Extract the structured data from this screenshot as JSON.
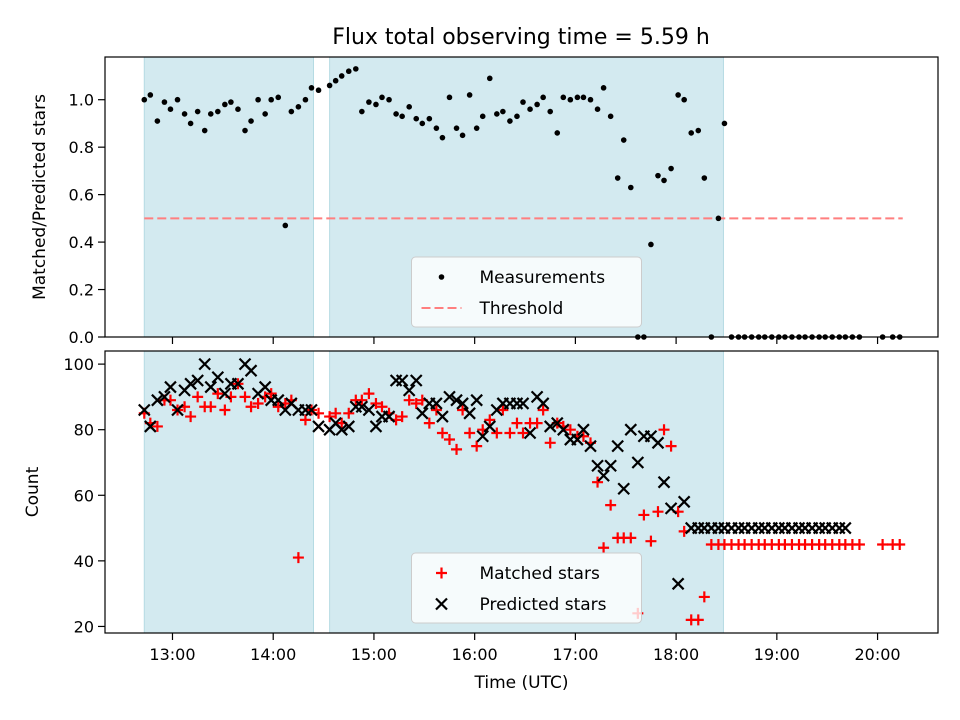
{
  "title": "Flux total observing time = 5.59 h",
  "colors": {
    "measurements": "#000000",
    "threshold": "#ff7f7f",
    "matched": "#ff0000",
    "predicted": "#000000",
    "shade": "#d3eaf0",
    "shade_edge": "#b5dbe3"
  },
  "chart_data": [
    {
      "type": "scatter",
      "ylabel": "Matched/Predicted stars",
      "xlabel": "",
      "x_unit": "hours UTC",
      "xlim": [
        12.33,
        20.6
      ],
      "ylim": [
        0,
        1.18
      ],
      "yticks": [
        0.0,
        0.2,
        0.4,
        0.6,
        0.8,
        1.0
      ],
      "ytick_labels": [
        "0.0",
        "0.2",
        "0.4",
        "0.6",
        "0.8",
        "1.0"
      ],
      "shaded_intervals": [
        [
          12.72,
          14.4
        ],
        [
          14.56,
          18.47
        ]
      ],
      "legend": {
        "placement": "lower center",
        "labels": [
          "Measurements",
          "Threshold"
        ]
      },
      "threshold": {
        "name": "Threshold",
        "value": 0.5,
        "x": [
          12.72,
          20.25
        ]
      },
      "series": [
        {
          "name": "Measurements",
          "x": [
            12.72,
            12.78,
            12.85,
            12.92,
            12.98,
            13.05,
            13.12,
            13.18,
            13.25,
            13.32,
            13.38,
            13.45,
            13.52,
            13.58,
            13.65,
            13.72,
            13.78,
            13.85,
            13.92,
            13.98,
            14.05,
            14.12,
            14.18,
            14.25,
            14.32,
            14.38,
            14.45,
            14.56,
            14.62,
            14.68,
            14.75,
            14.82,
            14.88,
            14.95,
            15.02,
            15.08,
            15.15,
            15.22,
            15.28,
            15.35,
            15.42,
            15.48,
            15.55,
            15.62,
            15.68,
            15.75,
            15.82,
            15.88,
            15.95,
            16.02,
            16.08,
            16.15,
            16.22,
            16.28,
            16.35,
            16.42,
            16.48,
            16.55,
            16.62,
            16.68,
            16.75,
            16.82,
            16.88,
            16.95,
            17.02,
            17.08,
            17.15,
            17.22,
            17.28,
            17.35,
            17.42,
            17.48,
            17.55,
            17.62,
            17.68,
            17.75,
            17.82,
            17.88,
            17.95,
            18.02,
            18.08,
            18.15,
            18.22,
            18.28,
            18.35,
            18.42,
            18.48,
            18.55,
            18.62,
            18.68,
            18.75,
            18.82,
            18.88,
            18.95,
            19.02,
            19.08,
            19.15,
            19.22,
            19.28,
            19.35,
            19.42,
            19.48,
            19.55,
            19.62,
            19.68,
            19.75,
            19.82,
            20.05,
            20.15,
            20.22
          ],
          "y": [
            1.0,
            1.02,
            0.91,
            0.99,
            0.96,
            1.0,
            0.94,
            0.9,
            0.95,
            0.87,
            0.94,
            0.95,
            0.98,
            0.99,
            0.96,
            0.87,
            0.91,
            1.0,
            0.94,
            1.0,
            1.01,
            0.47,
            0.95,
            0.97,
            1.0,
            1.05,
            1.04,
            1.06,
            1.08,
            1.1,
            1.12,
            1.13,
            0.95,
            0.99,
            0.98,
            1.01,
            1.0,
            0.94,
            0.93,
            0.97,
            0.92,
            0.9,
            0.92,
            0.88,
            0.84,
            1.01,
            0.88,
            0.85,
            1.02,
            0.88,
            0.93,
            1.09,
            0.94,
            0.95,
            0.91,
            0.93,
            0.99,
            0.96,
            0.98,
            1.01,
            0.95,
            0.86,
            1.01,
            1.0,
            1.01,
            1.01,
            1.0,
            0.96,
            1.05,
            0.93,
            0.67,
            0.83,
            0.63,
            0.0,
            0.0,
            0.39,
            0.68,
            0.66,
            0.71,
            1.02,
            1.0,
            0.86,
            0.87,
            0.67,
            0.0,
            0.5,
            0.9,
            0.0,
            0.0,
            0.0,
            0.0,
            0.0,
            0.0,
            0.0,
            0.0,
            0.0,
            0.0,
            0.0,
            0.0,
            0.0,
            0.0,
            0.0,
            0.0,
            0.0,
            0.0,
            0.0,
            0.0,
            0.0,
            0.0,
            0.0
          ]
        }
      ]
    },
    {
      "type": "scatter",
      "ylabel": "Count",
      "xlabel": "Time (UTC)",
      "x_unit": "hours UTC",
      "xlim": [
        12.33,
        20.6
      ],
      "ylim": [
        18,
        104
      ],
      "yticks": [
        20,
        40,
        60,
        80,
        100
      ],
      "ytick_labels": [
        "20",
        "40",
        "60",
        "80",
        "100"
      ],
      "xticks": [
        13,
        14,
        15,
        16,
        17,
        18,
        19,
        20
      ],
      "xtick_labels": [
        "13:00",
        "14:00",
        "15:00",
        "16:00",
        "17:00",
        "18:00",
        "19:00",
        "20:00"
      ],
      "shaded_intervals": [
        [
          12.72,
          14.4
        ],
        [
          14.56,
          18.47
        ]
      ],
      "legend": {
        "placement": "lower center",
        "labels": [
          "Matched stars",
          "Predicted stars"
        ]
      },
      "series": [
        {
          "name": "Matched stars",
          "marker": "plus",
          "x": [
            12.72,
            12.78,
            12.85,
            12.92,
            12.98,
            13.05,
            13.12,
            13.18,
            13.25,
            13.32,
            13.38,
            13.45,
            13.52,
            13.58,
            13.65,
            13.72,
            13.78,
            13.85,
            13.92,
            13.98,
            14.05,
            14.12,
            14.18,
            14.25,
            14.32,
            14.38,
            14.45,
            14.56,
            14.62,
            14.68,
            14.75,
            14.82,
            14.88,
            14.95,
            15.02,
            15.08,
            15.15,
            15.22,
            15.28,
            15.35,
            15.42,
            15.48,
            15.55,
            15.62,
            15.68,
            15.75,
            15.82,
            15.88,
            15.95,
            16.02,
            16.08,
            16.15,
            16.22,
            16.28,
            16.35,
            16.42,
            16.48,
            16.55,
            16.62,
            16.68,
            16.75,
            16.82,
            16.88,
            16.95,
            17.02,
            17.08,
            17.15,
            17.22,
            17.28,
            17.35,
            17.42,
            17.48,
            17.55,
            17.62,
            17.68,
            17.75,
            17.82,
            17.88,
            17.95,
            18.02,
            18.08,
            18.15,
            18.22,
            18.28,
            18.35,
            18.42,
            18.48,
            18.55,
            18.62,
            18.68,
            18.75,
            18.82,
            18.88,
            18.95,
            19.02,
            19.08,
            19.15,
            19.22,
            19.28,
            19.35,
            19.42,
            19.48,
            19.55,
            19.62,
            19.68,
            19.75,
            19.82,
            20.05,
            20.15,
            20.22
          ],
          "y": [
            85,
            82,
            81,
            89,
            89,
            86,
            87,
            84,
            90,
            87,
            87,
            91,
            86,
            90,
            94,
            90,
            87,
            88,
            90,
            91,
            87,
            88,
            89,
            41,
            83,
            86,
            85,
            84,
            85,
            82,
            85,
            89,
            89,
            91,
            88,
            87,
            85,
            83,
            84,
            89,
            88,
            89,
            82,
            86,
            79,
            77,
            74,
            86,
            79,
            75,
            80,
            83,
            79,
            86,
            79,
            82,
            79,
            82,
            82,
            86,
            76,
            82,
            81,
            80,
            78,
            78,
            76,
            64,
            44,
            57,
            47,
            47,
            47,
            24,
            54,
            46,
            55,
            80,
            75,
            55,
            49,
            22,
            22,
            29,
            45,
            45,
            45,
            45,
            45,
            45,
            45,
            45,
            45,
            45,
            45,
            45,
            45,
            45,
            45,
            45,
            45,
            45,
            45,
            45,
            45,
            45,
            45,
            45,
            45,
            45
          ]
        },
        {
          "name": "Predicted stars",
          "marker": "x",
          "x": [
            12.72,
            12.78,
            12.85,
            12.92,
            12.98,
            13.05,
            13.12,
            13.18,
            13.25,
            13.32,
            13.38,
            13.45,
            13.52,
            13.58,
            13.65,
            13.72,
            13.78,
            13.85,
            13.92,
            13.98,
            14.05,
            14.12,
            14.18,
            14.25,
            14.32,
            14.38,
            14.45,
            14.56,
            14.62,
            14.68,
            14.75,
            14.82,
            14.88,
            14.95,
            15.02,
            15.08,
            15.15,
            15.22,
            15.28,
            15.35,
            15.42,
            15.48,
            15.55,
            15.62,
            15.68,
            15.75,
            15.82,
            15.88,
            15.95,
            16.02,
            16.08,
            16.15,
            16.22,
            16.28,
            16.35,
            16.42,
            16.48,
            16.55,
            16.62,
            16.68,
            16.75,
            16.82,
            16.88,
            16.95,
            17.02,
            17.08,
            17.15,
            17.22,
            17.28,
            17.35,
            17.42,
            17.48,
            17.55,
            17.62,
            17.68,
            17.75,
            17.82,
            17.88,
            17.95,
            18.02,
            18.08,
            18.15,
            18.22,
            18.28,
            18.35,
            18.42,
            18.48,
            18.55,
            18.62,
            18.68,
            18.75,
            18.82,
            18.88,
            18.95,
            19.02,
            19.08,
            19.15,
            19.22,
            19.28,
            19.35,
            19.42,
            19.48,
            19.55,
            19.62,
            19.68
          ],
          "y": [
            86,
            81,
            89,
            90,
            93,
            86,
            92,
            94,
            95,
            100,
            93,
            96,
            91,
            94,
            94,
            100,
            98,
            91,
            93,
            89,
            89,
            86,
            88,
            86,
            86,
            86,
            81,
            80,
            82,
            80,
            81,
            87,
            87,
            86,
            81,
            84,
            84,
            95,
            95,
            92,
            95,
            85,
            88,
            88,
            84,
            90,
            89,
            88,
            85,
            89,
            78,
            81,
            86,
            88,
            88,
            88,
            88,
            79,
            90,
            88,
            81,
            82,
            80,
            77,
            77,
            80,
            75,
            69,
            66,
            69,
            75,
            62,
            80,
            70,
            78,
            78,
            76,
            64,
            56,
            33,
            58,
            50,
            50,
            50,
            50,
            50,
            50,
            50,
            50,
            50,
            50,
            50,
            50,
            50,
            50,
            50,
            50,
            50,
            50,
            50,
            50,
            50,
            50,
            50,
            50
          ]
        }
      ]
    }
  ]
}
